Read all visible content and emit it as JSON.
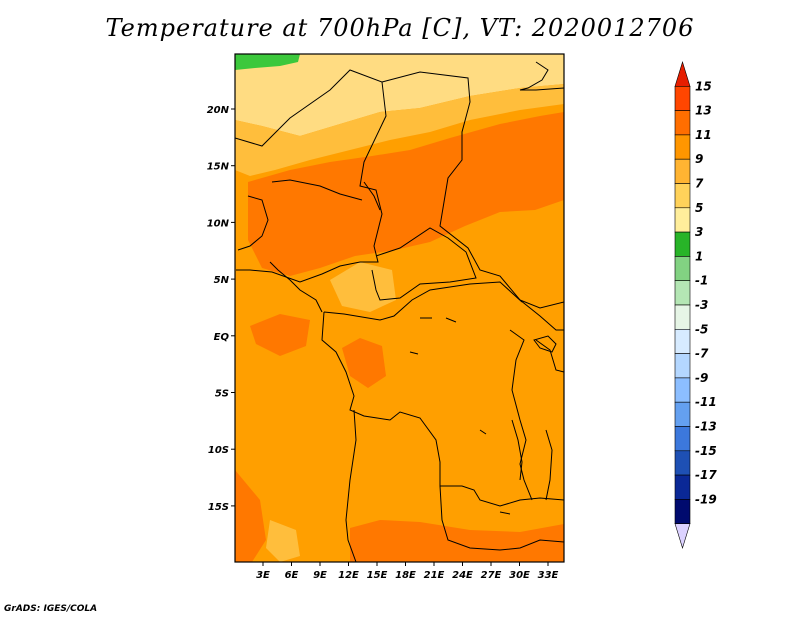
{
  "title": "Temperature at 700hPa [C], VT: 2020012706",
  "credit": "GrADS: IGES/COLA",
  "map": {
    "lat_labels": [
      "20N",
      "15N",
      "10N",
      "5N",
      "EQ",
      "5S",
      "10S",
      "15S"
    ],
    "lon_labels": [
      "3E",
      "6E",
      "9E",
      "12E",
      "15E",
      "18E",
      "21E",
      "24E",
      "27E",
      "30E",
      "33E"
    ],
    "land_color": "#ff9f00",
    "warm_patch_color": "#ff7800",
    "cool_patch_color": "#ffbe3c",
    "pale_patch_color": "#ffdc82",
    "green_patch_color": "#3cc83c",
    "border_color": "#000000"
  },
  "colorbar": {
    "labels": [
      "15",
      "13",
      "11",
      "9",
      "7",
      "5",
      "3",
      "1",
      "-1",
      "-3",
      "-5",
      "-7",
      "-9",
      "-11",
      "-13",
      "-15",
      "-17",
      "-19"
    ],
    "colors": [
      "#e61e00",
      "#ff4600",
      "#ff6e00",
      "#ff9600",
      "#ffb432",
      "#ffd25a",
      "#ffee9b",
      "#28b428",
      "#82d282",
      "#b4e6b4",
      "#e6f5e6",
      "#d7ebff",
      "#b4d7ff",
      "#8cbeff",
      "#64a0f0",
      "#3c78dc",
      "#1e50b4",
      "#0a2896",
      "#000a6e",
      "#dcd2ff"
    ]
  }
}
